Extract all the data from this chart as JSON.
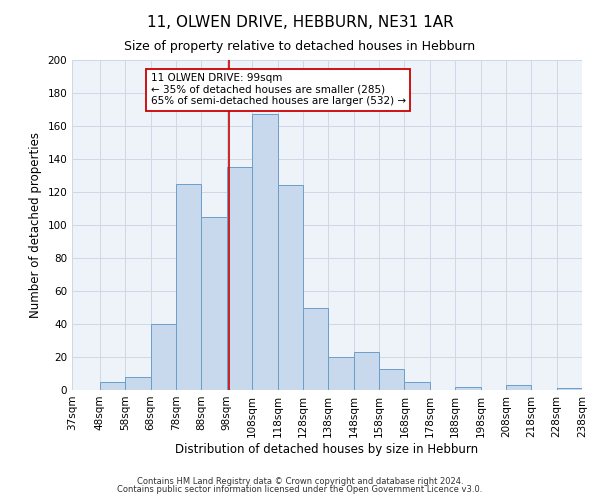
{
  "title": "11, OLWEN DRIVE, HEBBURN, NE31 1AR",
  "subtitle": "Size of property relative to detached houses in Hebburn",
  "xlabel": "Distribution of detached houses by size in Hebburn",
  "ylabel": "Number of detached properties",
  "footnote1": "Contains HM Land Registry data © Crown copyright and database right 2024.",
  "footnote2": "Contains public sector information licensed under the Open Government Licence v3.0.",
  "annotation_title": "11 OLWEN DRIVE: 99sqm",
  "annotation_line1": "← 35% of detached houses are smaller (285)",
  "annotation_line2": "65% of semi-detached houses are larger (532) →",
  "bin_edges": [
    37,
    48,
    58,
    68,
    78,
    88,
    98,
    108,
    118,
    128,
    138,
    148,
    158,
    168,
    178,
    188,
    198,
    208,
    218,
    228,
    238
  ],
  "bin_counts": [
    0,
    5,
    8,
    40,
    125,
    105,
    135,
    167,
    124,
    50,
    20,
    23,
    13,
    5,
    0,
    2,
    0,
    3,
    0,
    1
  ],
  "bar_facecolor": "#c9d9ed",
  "bar_edgecolor": "#6b9fc8",
  "vline_x": 99,
  "vline_color": "#cc0000",
  "grid_color": "#d0d8e8",
  "background_color": "#eef2f9",
  "ylim": [
    0,
    200
  ],
  "yticks": [
    0,
    20,
    40,
    60,
    80,
    100,
    120,
    140,
    160,
    180,
    200
  ],
  "title_fontsize": 11,
  "subtitle_fontsize": 9,
  "axis_label_fontsize": 8.5,
  "tick_fontsize": 7.5,
  "annotation_fontsize": 7.5,
  "footnote_fontsize": 6,
  "annotation_box_edgecolor": "#cc0000",
  "annotation_box_facecolor": "#ffffff"
}
